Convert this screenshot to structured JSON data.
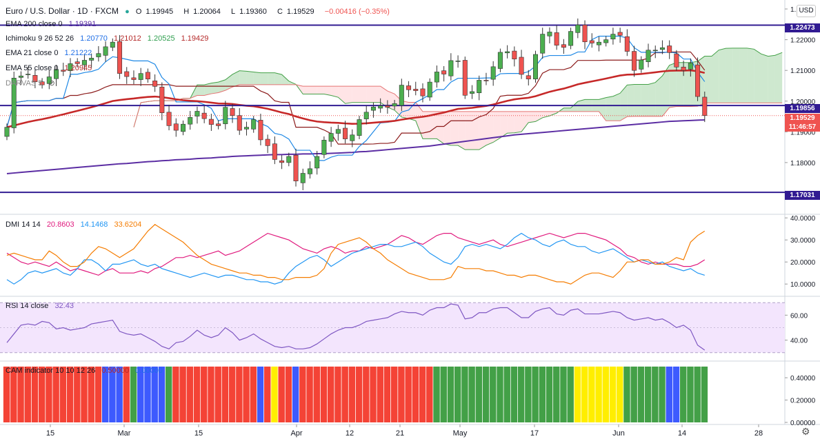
{
  "header": {
    "symbol": "Euro / U.S. Dollar · 1D · FXCM",
    "ohlc": [
      {
        "label": "O",
        "value": "1.19945"
      },
      {
        "label": "H",
        "value": "1.20064"
      },
      {
        "label": "L",
        "value": "1.19360"
      },
      {
        "label": "C",
        "value": "1.19529"
      },
      {
        "label": "",
        "value": "−0.00416 (−0.35%)"
      }
    ],
    "currency_button": "USD"
  },
  "legends": {
    "ema200": {
      "name": "EMA 200 close 0",
      "value": "1.19391",
      "color": "#5b2da3"
    },
    "ichimoku": {
      "name": "Ichimoku 9 26 52 26",
      "values": [
        "1.20770",
        "1.21012",
        "1.20525",
        "1.19429"
      ],
      "colors": [
        "#1e6ee6",
        "#b42828",
        "#2e9e4e",
        "#b42828"
      ]
    },
    "ema21": {
      "name": "EMA 21 close 0",
      "value": "1.21222",
      "color": "#1e6ee6"
    },
    "ema55": {
      "name": "EMA 55 close 0",
      "value": "1.20945",
      "color": "#b42828"
    },
    "darvas": {
      "name": "DARVAS 5"
    },
    "dmi": {
      "name": "DMI 14 14",
      "values": [
        "20.8603",
        "14.1468",
        "33.6204"
      ],
      "colors": [
        "#e0197d",
        "#2196f3",
        "#f57c00"
      ]
    },
    "rsi": {
      "name": "RSI 14 close",
      "value": "32.43",
      "color": "#7e57c2"
    },
    "cam": {
      "name": "CAM indicator 10 10 12 26",
      "values": [
        "0.50000",
        "0.00000"
      ],
      "colors": [
        "#b42828",
        "#1e6ee6"
      ]
    }
  },
  "price_tags": [
    {
      "text": "1.22473",
      "bg": "#311b92"
    },
    {
      "text": "1.19856",
      "bg": "#311b92"
    },
    {
      "text": "1.19529",
      "bg": "#ef5350"
    },
    {
      "text": "11:46:57",
      "bg": "#ef5350"
    },
    {
      "text": "1.17031",
      "bg": "#311b92"
    }
  ],
  "colors": {
    "up": "#4caf50",
    "down": "#ef5350",
    "ema200": "#5b2da3",
    "ema55": "#c62828",
    "tenkan": "#1e88e5",
    "kijun": "#8b1a1a",
    "cloud_bull": "#a5d6a7",
    "cloud_bear": "#ffcdd2",
    "hline": "#311b92",
    "rsi_bg": "#f3e5fd",
    "dmi_plus": "#e0197d",
    "dmi_minus": "#2196f3",
    "adx": "#f57c00",
    "cam_red": "#f44336",
    "cam_blue": "#3d5afe",
    "cam_green": "#43a047",
    "cam_yellow": "#ffee00"
  },
  "chart_data": [
    {
      "type": "candlestick",
      "title": "Euro / U.S. Dollar · 1D · FXCM",
      "x_ticks": [
        "15",
        "Mar",
        "15",
        "Apr",
        "12",
        "21",
        "May",
        "17",
        "Jun",
        "14",
        "28"
      ],
      "y_ticks": [
        "1.17000",
        "1.18000",
        "1.19000",
        "1.20000",
        "1.21000",
        "1.22000",
        "1.23000"
      ],
      "ylim": [
        1.1645,
        1.2318
      ],
      "horizontal_lines": [
        1.22473,
        1.19856,
        1.17031
      ],
      "last_close": 1.19529,
      "closes": [
        1.1915,
        1.2075,
        1.2082,
        1.2088,
        1.2063,
        1.2053,
        1.2079,
        1.2103,
        1.2097,
        1.2122,
        1.2122,
        1.2133,
        1.214,
        1.2155,
        1.2177,
        1.2192,
        1.209,
        1.208,
        1.207,
        1.209,
        1.2072,
        1.2048,
        1.1962,
        1.192,
        1.1905,
        1.1925,
        1.1947,
        1.1967,
        1.1943,
        1.1924,
        1.192,
        1.198,
        1.1953,
        1.1905,
        1.1915,
        1.194,
        1.1874,
        1.1855,
        1.181,
        1.18,
        1.182,
        1.174,
        1.1765,
        1.178,
        1.182,
        1.1873,
        1.1895,
        1.1908,
        1.1877,
        1.189,
        1.194,
        1.1964,
        1.1981,
        1.1985,
        1.198,
        1.1992,
        1.2052,
        1.2037,
        1.2034,
        1.2017,
        1.2062,
        1.2095,
        1.2088,
        1.2132,
        1.2131,
        1.2019,
        1.2031,
        1.2068,
        1.2067,
        1.2112,
        1.2159,
        1.2161,
        1.2137,
        1.2087,
        1.2072,
        1.2152,
        1.2218,
        1.2225,
        1.2182,
        1.2175,
        1.2227,
        1.2248,
        1.2193,
        1.2189,
        1.2192,
        1.22,
        1.2218,
        1.2214,
        1.2162,
        1.21,
        1.2134,
        1.2166,
        1.2166,
        1.2174,
        1.2158,
        1.2111,
        1.21,
        1.2124,
        1.2015,
        1.1953
      ],
      "ema200": [
        1.1764,
        1.1766,
        1.1768,
        1.177,
        1.1772,
        1.1774,
        1.1776,
        1.1778,
        1.178,
        1.1782,
        1.1784,
        1.1786,
        1.1788,
        1.179,
        1.1792,
        1.1794,
        1.1796,
        1.1797,
        1.1799,
        1.1801,
        1.1803,
        1.1804,
        1.1806,
        1.1807,
        1.1809,
        1.181,
        1.1811,
        1.1813,
        1.1814,
        1.1815,
        1.1817,
        1.1818,
        1.182,
        1.1821,
        1.1822,
        1.1823,
        1.1824,
        1.1825,
        1.1826,
        1.1826,
        1.1827,
        1.1827,
        1.1828,
        1.1828,
        1.1829,
        1.1829,
        1.183,
        1.1831,
        1.1832,
        1.1833,
        1.1835,
        1.1836,
        1.1838,
        1.184,
        1.1842,
        1.1844,
        1.1846,
        1.1848,
        1.185,
        1.1852,
        1.1854,
        1.1857,
        1.186,
        1.1863,
        1.1866,
        1.1869,
        1.1872,
        1.1875,
        1.1878,
        1.1881,
        1.1884,
        1.1887,
        1.189,
        1.1892,
        1.1894,
        1.1896,
        1.1898,
        1.19,
        1.1902,
        1.1904,
        1.1906,
        1.1908,
        1.191,
        1.1912,
        1.1914,
        1.1916,
        1.1918,
        1.192,
        1.1922,
        1.1924,
        1.1926,
        1.1928,
        1.193,
        1.1932,
        1.1934,
        1.1935,
        1.1936,
        1.1937,
        1.1938,
        1.1939
      ]
    },
    {
      "type": "line",
      "title": "DMI 14 14",
      "y_ticks": [
        "10.0000",
        "20.0000",
        "30.0000",
        "40.0000"
      ],
      "ylim": [
        6,
        41
      ],
      "series": [
        {
          "name": "+DI",
          "values": [
            24,
            22,
            20,
            19,
            20,
            19,
            18,
            20,
            18,
            16,
            17,
            16,
            15,
            14,
            16,
            17,
            15,
            15,
            15,
            16,
            15,
            17,
            18,
            20,
            22,
            22,
            23,
            22,
            23,
            24,
            25,
            23,
            24,
            25,
            27,
            29,
            31,
            33,
            32,
            31,
            30,
            28,
            26,
            25,
            24,
            26,
            27,
            26,
            24,
            25,
            25,
            27,
            26,
            27,
            28,
            30,
            32,
            31,
            29,
            28,
            30,
            32,
            33,
            33,
            31,
            30,
            29,
            28,
            29,
            30,
            28,
            27,
            28,
            29,
            30,
            31,
            32,
            33,
            32,
            31,
            32,
            33,
            33,
            32,
            31,
            30,
            28,
            26,
            23,
            22,
            20,
            19,
            20,
            19,
            19,
            19,
            18,
            18,
            19,
            21
          ]
        },
        {
          "name": "-DI",
          "values": [
            12,
            10,
            12,
            15,
            16,
            15,
            16,
            17,
            15,
            14,
            17,
            21,
            21,
            19,
            16,
            19,
            19,
            20,
            21,
            19,
            18,
            19,
            17,
            16,
            15,
            14,
            13,
            14,
            15,
            14,
            13,
            14,
            14,
            13,
            12,
            12,
            11,
            11,
            10,
            11,
            15,
            18,
            20,
            22,
            23,
            21,
            18,
            20,
            22,
            24,
            25,
            26,
            27,
            28,
            28,
            27,
            27,
            28,
            29,
            27,
            24,
            22,
            20,
            19,
            22,
            27,
            28,
            27,
            28,
            27,
            26,
            28,
            31,
            33,
            31,
            30,
            28,
            27,
            29,
            30,
            28,
            27,
            27,
            25,
            24,
            25,
            26,
            24,
            22,
            20,
            21,
            20,
            19,
            20,
            18,
            17,
            16,
            17,
            15,
            14
          ]
        },
        {
          "name": "ADX",
          "values": [
            23,
            24,
            23,
            22,
            21,
            21,
            25,
            23,
            20,
            18,
            18,
            20,
            24,
            27,
            26,
            24,
            22,
            24,
            26,
            30,
            34,
            37,
            35,
            33,
            31,
            29,
            26,
            23,
            21,
            19,
            18,
            17,
            16,
            15,
            15,
            14,
            14,
            13,
            13,
            12,
            12,
            13,
            13,
            13,
            14,
            17,
            24,
            28,
            29,
            30,
            31,
            29,
            26,
            24,
            21,
            19,
            17,
            15,
            14,
            13,
            12,
            12,
            12,
            13,
            18,
            17,
            17,
            17,
            16,
            16,
            15,
            14,
            14,
            13,
            14,
            14,
            13,
            12,
            11,
            11,
            10,
            12,
            14,
            15,
            15,
            14,
            13,
            16,
            20,
            20,
            21,
            21,
            19,
            19,
            20,
            22,
            21,
            29,
            32,
            34
          ]
        }
      ]
    },
    {
      "type": "line",
      "title": "RSI 14 close",
      "y_ticks": [
        "40.00",
        "60.00"
      ],
      "ylim": [
        26,
        74
      ],
      "bands": [
        70,
        30
      ],
      "series": [
        {
          "name": "RSI",
          "values": [
            38,
            45,
            52,
            53,
            52,
            55,
            54,
            49,
            50,
            48,
            49,
            50,
            53,
            54,
            55,
            56,
            47,
            45,
            44,
            45,
            42,
            39,
            35,
            33,
            38,
            39,
            43,
            48,
            44,
            42,
            44,
            50,
            46,
            40,
            42,
            45,
            41,
            38,
            35,
            34,
            35,
            33,
            33,
            34,
            37,
            41,
            45,
            48,
            50,
            50,
            52,
            55,
            56,
            57,
            58,
            61,
            63,
            62,
            62,
            60,
            64,
            66,
            66,
            69,
            68,
            57,
            58,
            62,
            62,
            65,
            66,
            66,
            62,
            58,
            58,
            63,
            65,
            66,
            61,
            60,
            64,
            65,
            61,
            61,
            61,
            62,
            63,
            62,
            58,
            56,
            57,
            58,
            56,
            57,
            54,
            50,
            52,
            48,
            36,
            32
          ]
        }
      ]
    },
    {
      "type": "bar",
      "title": "CAM indicator 10 10 12 26",
      "y_ticks": [
        "0.00000",
        "0.20000",
        "0.40000"
      ],
      "ylim": [
        0,
        0.5
      ],
      "states": [
        "R",
        "R",
        "R",
        "R",
        "R",
        "R",
        "R",
        "R",
        "R",
        "R",
        "R",
        "R",
        "R",
        "R",
        "B",
        "B",
        "B",
        "R",
        "G",
        "B",
        "B",
        "B",
        "B",
        "G",
        "R",
        "R",
        "R",
        "R",
        "R",
        "R",
        "R",
        "R",
        "R",
        "R",
        "R",
        "R",
        "B",
        "R",
        "Y",
        "R",
        "R",
        "B",
        "R",
        "R",
        "R",
        "R",
        "R",
        "R",
        "R",
        "R",
        "R",
        "R",
        "R",
        "R",
        "R",
        "R",
        "R",
        "R",
        "R",
        "R",
        "R",
        "G",
        "G",
        "G",
        "G",
        "G",
        "G",
        "G",
        "G",
        "G",
        "G",
        "G",
        "G",
        "G",
        "G",
        "G",
        "G",
        "G",
        "G",
        "G",
        "G",
        "Y",
        "Y",
        "Y",
        "Y",
        "Y",
        "Y",
        "Y",
        "G",
        "G",
        "G",
        "G",
        "G",
        "G",
        "B",
        "B",
        "G",
        "G",
        "G",
        "G"
      ]
    }
  ]
}
